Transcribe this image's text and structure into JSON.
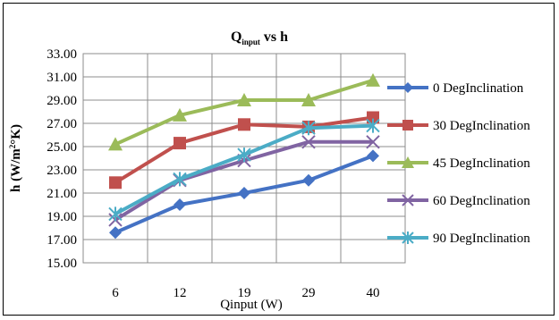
{
  "chart_data": {
    "type": "line",
    "title_main": "Q",
    "title_sub": "input",
    "title_rest": " vs h",
    "xlabel": "Qinput (W)",
    "ylabel_main": "h (W/m",
    "ylabel_sup": "2",
    "ylabel_rest": "°K)",
    "categories": [
      "6",
      "12",
      "19",
      "29",
      "40"
    ],
    "ylim": [
      15,
      33
    ],
    "yticks": [
      "15.00",
      "17.00",
      "19.00",
      "21.00",
      "23.00",
      "25.00",
      "27.00",
      "29.00",
      "31.00",
      "33.00"
    ],
    "grid": true,
    "legend_position": "right",
    "series": [
      {
        "name": "0 DegInclination",
        "values": [
          17.6,
          20.0,
          21.0,
          22.1,
          24.2
        ],
        "color": "#4472C4",
        "marker": "diamond"
      },
      {
        "name": "30 DegInclination",
        "values": [
          21.9,
          25.3,
          26.9,
          26.7,
          27.5
        ],
        "color": "#C0504D",
        "marker": "square"
      },
      {
        "name": "45 DegInclination",
        "values": [
          25.2,
          27.7,
          29.0,
          29.0,
          30.7
        ],
        "color": "#9BBB59",
        "marker": "triangle"
      },
      {
        "name": "60 DegInclination",
        "values": [
          18.7,
          22.1,
          23.8,
          25.4,
          25.4
        ],
        "color": "#8064A2",
        "marker": "x"
      },
      {
        "name": "90 DegInclination",
        "values": [
          19.2,
          22.2,
          24.3,
          26.6,
          26.8
        ],
        "color": "#4BACC6",
        "marker": "star"
      }
    ]
  }
}
